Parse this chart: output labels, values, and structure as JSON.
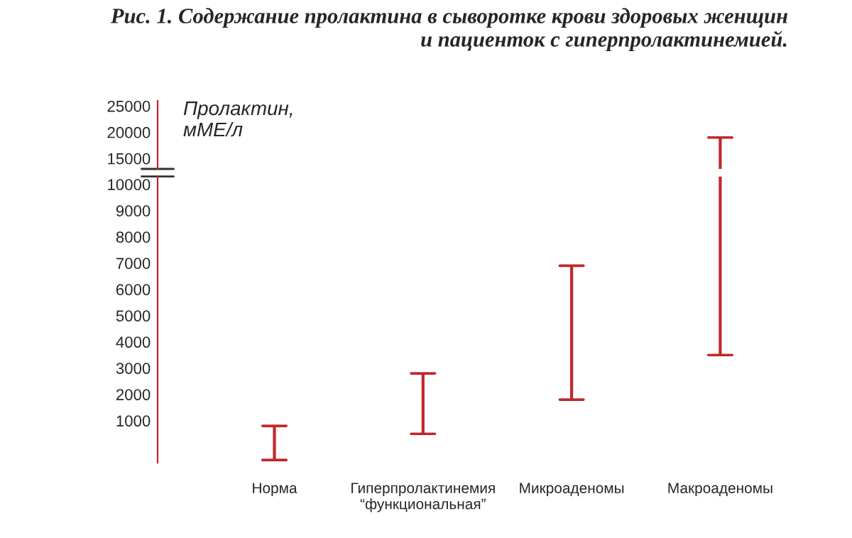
{
  "chart_data": [
    {
      "type": "bar",
      "title": "Рис. 1. Содержание пролактина в сыворотке крови здоровых женщин\nи пациенток с гиперпролактинемией.",
      "ylabel": "Пролактин,\nмМЕ/л",
      "categories": [
        null,
        null,
        null,
        null
      ],
      "base": [
        null,
        null,
        null,
        13000
      ],
      "values": [
        null,
        null,
        null,
        6000
      ],
      "color": "#c0282d",
      "ylim": [
        13000,
        26000
      ],
      "yticks": [
        15000,
        20000,
        25000
      ],
      "tick_labels": "y",
      "grid": false
    },
    {
      "type": "bar",
      "categories": [
        "Норма",
        "Гиперпролактинемия\n“функциональная”",
        "Микроаденомы",
        "Макроаденомы"
      ],
      "base": [
        -500,
        500,
        1800,
        3500
      ],
      "values": [
        1300,
        2300,
        5100,
        6800
      ],
      "color": "#c0282d",
      "ylim": [
        -600,
        10300
      ],
      "yticks": [
        1000,
        2000,
        3000,
        4000,
        5000,
        6000,
        7000,
        8000,
        9000,
        10000
      ],
      "grid": false
    }
  ]
}
